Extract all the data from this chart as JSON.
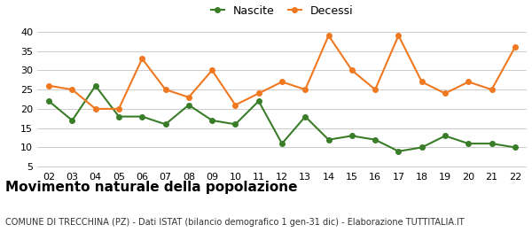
{
  "years": [
    "02",
    "03",
    "04",
    "05",
    "06",
    "07",
    "08",
    "09",
    "10",
    "11",
    "12",
    "13",
    "14",
    "15",
    "16",
    "17",
    "18",
    "19",
    "20",
    "21",
    "22"
  ],
  "nascite": [
    22,
    17,
    26,
    18,
    18,
    16,
    21,
    17,
    16,
    22,
    11,
    18,
    12,
    13,
    12,
    9,
    10,
    13,
    11,
    11,
    10
  ],
  "decessi": [
    26,
    25,
    20,
    20,
    33,
    25,
    23,
    30,
    21,
    24,
    27,
    25,
    39,
    30,
    25,
    39,
    27,
    24,
    27,
    25,
    36
  ],
  "nascite_color": "#3a7d29",
  "decessi_color": "#f07820",
  "title": "Movimento naturale della popolazione",
  "subtitle": "COMUNE DI TRECCHINA (PZ) - Dati ISTAT (bilancio demografico 1 gen-31 dic) - Elaborazione TUTTITALIA.IT",
  "ylabel_min": 5,
  "ylabel_max": 40,
  "yticks": [
    5,
    10,
    15,
    20,
    25,
    30,
    35,
    40
  ],
  "legend_nascite": "Nascite",
  "legend_decessi": "Decessi",
  "background_color": "#ffffff",
  "grid_color": "#cccccc",
  "title_fontsize": 11,
  "subtitle_fontsize": 7,
  "tick_fontsize": 8,
  "legend_fontsize": 9,
  "marker_size": 4,
  "line_width": 1.5
}
